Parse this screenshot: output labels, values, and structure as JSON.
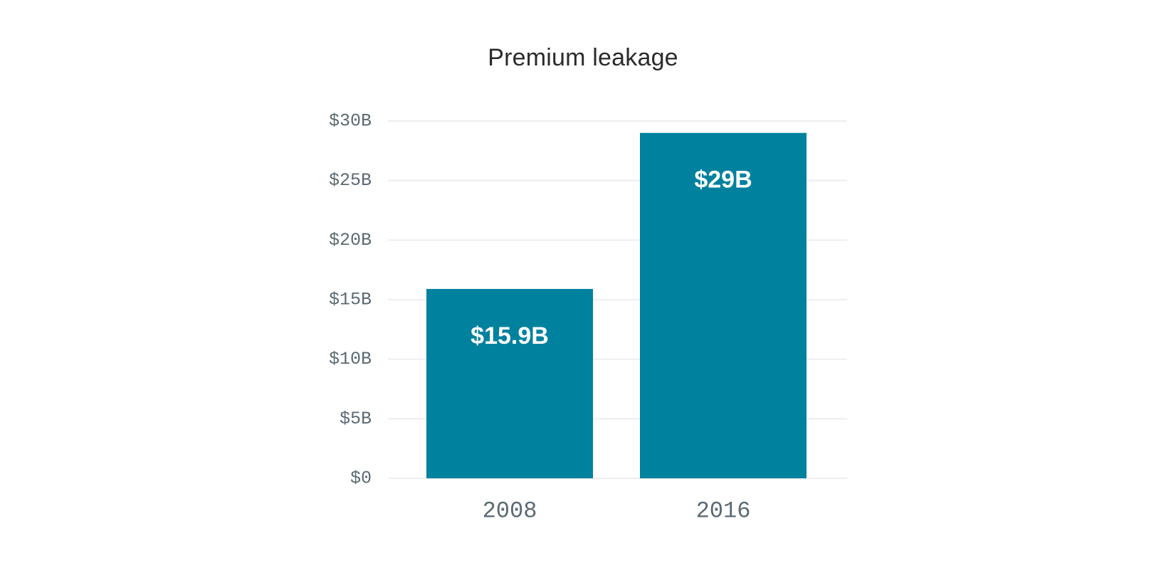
{
  "chart_data": {
    "type": "bar",
    "title": "Premium leakage",
    "xlabel": "",
    "ylabel": "",
    "categories": [
      "2008",
      "2016"
    ],
    "values": [
      15.9,
      29
    ],
    "data_labels": [
      "$15.9B",
      "$29B"
    ],
    "ylim": [
      0,
      30
    ],
    "yticks": [
      0,
      5,
      10,
      15,
      20,
      25,
      30
    ],
    "ytick_labels": [
      "$0",
      "$5B",
      "$10B",
      "$15B",
      "$20B",
      "$25B",
      "$30B"
    ],
    "grid": true,
    "legend": "none",
    "bar_color": "#00819e",
    "grid_color": "#eeeeee",
    "tick_color": "#5b6a72",
    "title_color": "#2b2b2b"
  }
}
